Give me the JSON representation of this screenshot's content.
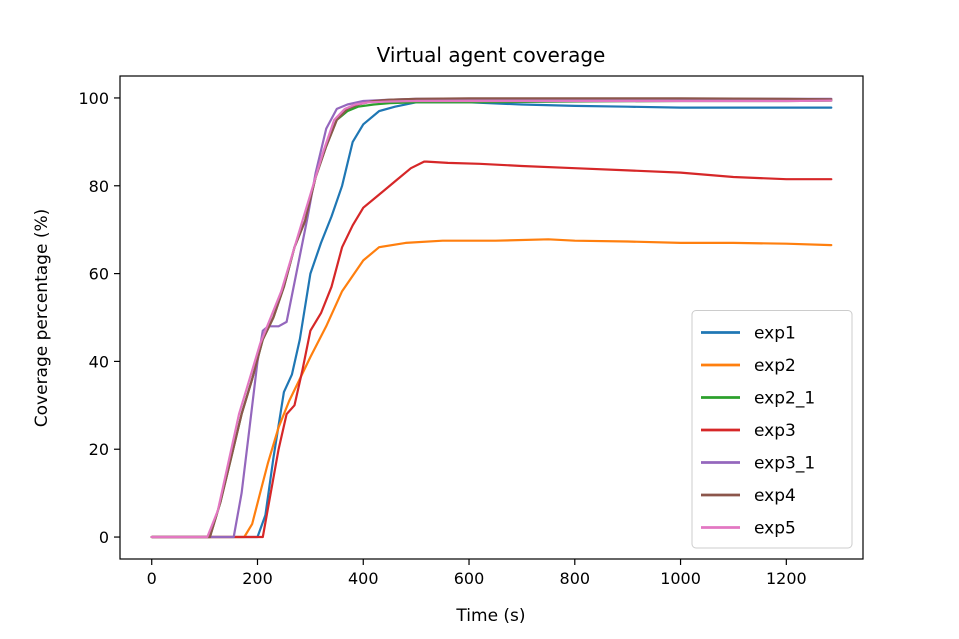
{
  "chart_data": {
    "type": "line",
    "title": "Virtual agent coverage",
    "xlabel": "Time (s)",
    "ylabel": "Coverage percentage (%)",
    "xlim": [
      -60,
      1345
    ],
    "ylim": [
      -5,
      105
    ],
    "xticks": [
      0,
      200,
      400,
      600,
      800,
      1000,
      1200
    ],
    "yticks": [
      0,
      20,
      40,
      60,
      80,
      100
    ],
    "grid": false,
    "legend_position": "lower right",
    "series": [
      {
        "name": "exp1",
        "color": "#1f77b4",
        "x": [
          0,
          200,
          215,
          230,
          250,
          265,
          280,
          300,
          320,
          340,
          360,
          380,
          400,
          430,
          460,
          500,
          550,
          600,
          700,
          800,
          900,
          1000,
          1100,
          1200,
          1285
        ],
        "y": [
          0,
          0,
          5,
          18,
          33,
          37,
          45,
          60,
          67,
          73,
          80,
          90,
          94,
          97,
          98,
          99,
          99,
          99,
          98.5,
          98.2,
          98,
          97.8,
          97.8,
          97.8,
          97.8
        ]
      },
      {
        "name": "exp2",
        "color": "#ff7f0e",
        "x": [
          0,
          175,
          190,
          205,
          220,
          240,
          260,
          280,
          300,
          330,
          360,
          400,
          430,
          480,
          550,
          650,
          750,
          800,
          900,
          1000,
          1100,
          1200,
          1285
        ],
        "y": [
          0,
          0,
          3,
          10,
          17,
          25,
          31,
          36,
          41,
          48,
          56,
          63,
          66,
          67,
          67.5,
          67.5,
          67.8,
          67.5,
          67.3,
          67,
          67,
          66.8,
          66.5
        ]
      },
      {
        "name": "exp2_1",
        "color": "#2ca02c",
        "x": [
          0,
          110,
          130,
          150,
          170,
          190,
          210,
          230,
          250,
          270,
          290,
          310,
          330,
          350,
          370,
          390,
          420,
          450,
          500,
          600,
          800,
          1000,
          1200,
          1285
        ],
        "y": [
          0,
          0,
          8,
          18,
          28,
          36,
          45,
          50,
          57,
          66,
          72,
          82,
          89,
          95,
          97,
          98,
          98.5,
          98.8,
          99,
          99,
          99.2,
          99.3,
          99.3,
          99.4
        ]
      },
      {
        "name": "exp3",
        "color": "#d62728",
        "x": [
          0,
          210,
          225,
          240,
          255,
          270,
          285,
          300,
          320,
          340,
          360,
          380,
          400,
          430,
          460,
          490,
          515,
          520,
          560,
          620,
          700,
          800,
          900,
          1000,
          1100,
          1200,
          1285
        ],
        "y": [
          0,
          0,
          10,
          20,
          28,
          30,
          38,
          47,
          51,
          57,
          66,
          71,
          75,
          78,
          81,
          84,
          85.5,
          85.5,
          85.2,
          85,
          84.5,
          84,
          83.5,
          83,
          82,
          81.5,
          81.5
        ]
      },
      {
        "name": "exp3_1",
        "color": "#9467bd",
        "x": [
          0,
          155,
          170,
          185,
          200,
          210,
          220,
          240,
          255,
          265,
          280,
          295,
          310,
          330,
          350,
          370,
          400,
          450,
          500,
          600,
          800,
          1000,
          1200,
          1285
        ],
        "y": [
          0,
          0,
          10,
          25,
          40,
          47,
          48,
          48,
          49,
          55,
          64,
          73,
          83,
          93,
          97.5,
          98.5,
          99.3,
          99.6,
          99.8,
          99.8,
          99.8,
          99.8,
          99.8,
          99.8
        ]
      },
      {
        "name": "exp4",
        "color": "#8c564b",
        "x": [
          0,
          110,
          130,
          150,
          170,
          190,
          210,
          230,
          250,
          270,
          290,
          310,
          330,
          350,
          370,
          390,
          420,
          450,
          500,
          600,
          800,
          1000,
          1200,
          1285
        ],
        "y": [
          0,
          0,
          8,
          18,
          28,
          36,
          45,
          50,
          57,
          66,
          72,
          82,
          89,
          95,
          97.5,
          98.5,
          99.3,
          99.6,
          99.8,
          99.9,
          99.9,
          99.9,
          99.8,
          99.7
        ]
      },
      {
        "name": "exp5",
        "color": "#e377c2",
        "x": [
          0,
          105,
          125,
          145,
          165,
          185,
          205,
          225,
          245,
          265,
          285,
          305,
          325,
          345,
          365,
          385,
          410,
          450,
          500,
          600,
          800,
          1000,
          1200,
          1285
        ],
        "y": [
          0,
          0,
          6,
          17,
          28,
          36,
          44,
          50,
          56,
          64,
          72,
          80,
          88,
          95,
          97.5,
          98.5,
          99,
          99.2,
          99.3,
          99.3,
          99.3,
          99.3,
          99.3,
          99.4
        ]
      }
    ]
  }
}
